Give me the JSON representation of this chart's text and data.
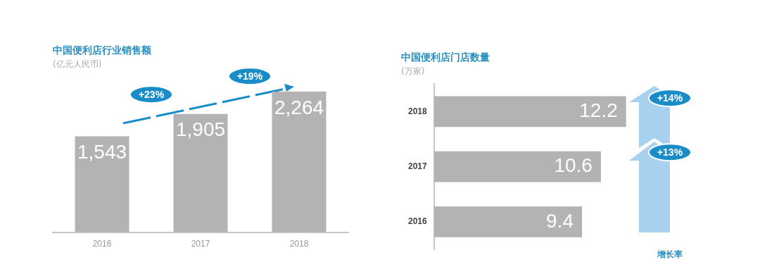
{
  "chart_data": [
    {
      "type": "bar",
      "title": "中国便利店行业销售额",
      "subtitle": "(亿元人民币)",
      "categories": [
        "2016",
        "2017",
        "2018"
      ],
      "values": [
        1543,
        1905,
        2264
      ],
      "color": "#b3b3b3",
      "value_labels": [
        "1,543",
        "1,905",
        "2,264"
      ],
      "annotations": [
        "+23%",
        "+19%"
      ]
    },
    {
      "type": "bar",
      "orientation": "horizontal",
      "title": "中国便利店门店数量",
      "subtitle": "(万家)",
      "categories": [
        "2018",
        "2017",
        "2016"
      ],
      "values": [
        12.2,
        10.6,
        9.4
      ],
      "color": "#b3b3b3",
      "data_labels": true,
      "annotations": [
        "+14%",
        "+13%",
        "增长率"
      ]
    }
  ]
}
